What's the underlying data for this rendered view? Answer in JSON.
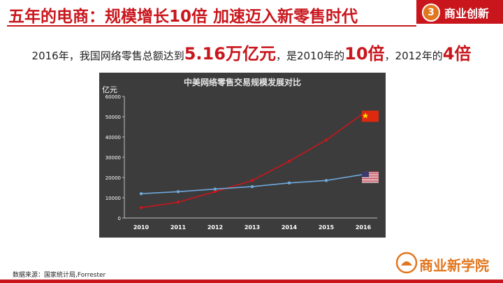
{
  "slide": {
    "title": "五年的电商：规模增长10倍  加速迈入新零售时代",
    "section_number": "3",
    "section_label": "商业创新"
  },
  "headline": {
    "part1": "2016年，我国网络零售总额达到",
    "value1": "5.16万亿元",
    "part2": "，是2010年的",
    "value2": "10倍",
    "part3": "，2012年的",
    "value3": "4倍"
  },
  "chart_data": {
    "type": "line",
    "title": "中美网络零售交易规模发展对比",
    "ylabel": "亿元",
    "xlabel": "",
    "x": [
      "2010",
      "2011",
      "2012",
      "2013",
      "2014",
      "2015",
      "2016"
    ],
    "ylim": [
      0,
      60000
    ],
    "yticks": [
      "0",
      "10000",
      "20000",
      "30000",
      "40000",
      "50000",
      "60000"
    ],
    "grid": false,
    "series": [
      {
        "name": "中国",
        "color": "#c9161d",
        "values": [
          5100,
          7800,
          13000,
          18500,
          28000,
          38500,
          51600
        ]
      },
      {
        "name": "美国",
        "color": "#6fa8dc",
        "values": [
          12000,
          13000,
          14300,
          15500,
          17300,
          18500,
          21500
        ]
      }
    ]
  },
  "footer": {
    "source": "数据来源：国家统计局,Forrester",
    "logo_text": "商业新学院"
  },
  "colors": {
    "brand_red": "#c9161d",
    "accent_orange": "#e2761e",
    "chart_bg": "#3c3c3c"
  }
}
